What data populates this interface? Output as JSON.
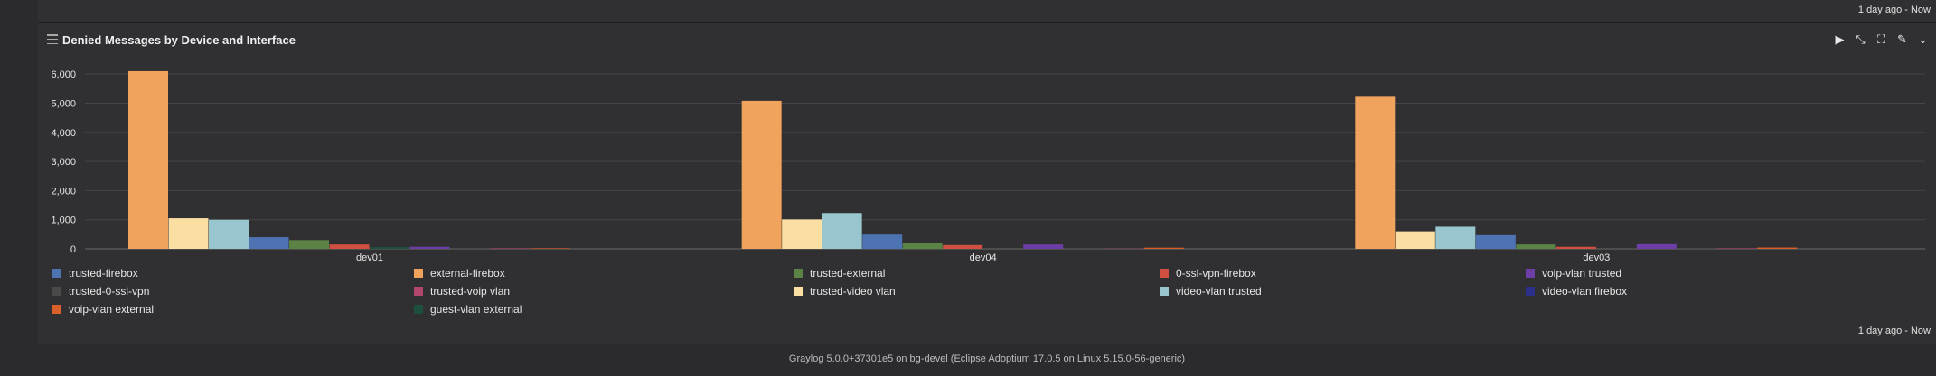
{
  "top_strip": {
    "time_range": "1 day ago - Now"
  },
  "widget": {
    "title": "Denied Messages by Device and Interface",
    "time_range": "1 day ago - Now",
    "tools": [
      {
        "name": "play-icon",
        "glyph": "▶"
      },
      {
        "name": "compress-icon",
        "glyph": "⤡"
      },
      {
        "name": "expand-icon",
        "glyph": "⛶"
      },
      {
        "name": "edit-icon",
        "glyph": "✎"
      },
      {
        "name": "chevron-down-icon",
        "glyph": "⌄"
      }
    ]
  },
  "footer": {
    "text": "Graylog 5.0.0+37301e5 on bg-devel (Eclipse Adoptium 17.0.5 on Linux 5.15.0-56-generic)"
  },
  "chart_data": {
    "type": "bar",
    "categories": [
      "dev01",
      "dev04",
      "dev03"
    ],
    "ylim": [
      0,
      6500
    ],
    "yticks": [
      0,
      1000,
      2000,
      3000,
      4000,
      5000,
      6000
    ],
    "ytick_labels": [
      "0",
      "1,000",
      "2,000",
      "3,000",
      "4,000",
      "5,000",
      "6,000"
    ],
    "grid": true,
    "legend_position": "bottom",
    "series": [
      {
        "name": "external-firebox",
        "color": "#f0a35c",
        "values": [
          6100,
          5080,
          5220
        ]
      },
      {
        "name": "trusted-video vlan",
        "color": "#fbdea2",
        "values": [
          1050,
          1010,
          600
        ]
      },
      {
        "name": "video-vlan trusted",
        "color": "#98c6cf",
        "values": [
          1000,
          1230,
          760
        ]
      },
      {
        "name": "trusted-firebox",
        "color": "#4e73b3",
        "values": [
          400,
          490,
          470
        ]
      },
      {
        "name": "trusted-external",
        "color": "#5b8345",
        "values": [
          300,
          190,
          150
        ]
      },
      {
        "name": "0-ssl-vpn-firebox",
        "color": "#d04f40",
        "values": [
          150,
          130,
          70
        ]
      },
      {
        "name": "guest-vlan external",
        "color": "#1d4f3c",
        "values": [
          60,
          0,
          0
        ]
      },
      {
        "name": "voip-vlan trusted",
        "color": "#6d3fa6",
        "values": [
          70,
          150,
          160
        ]
      },
      {
        "name": "trusted-0-ssl-vpn",
        "color": "#4a4a4a",
        "values": [
          30,
          30,
          30
        ]
      },
      {
        "name": "trusted-voip vlan",
        "color": "#b0456e",
        "values": [
          20,
          10,
          20
        ]
      },
      {
        "name": "voip-vlan external",
        "color": "#d9602a",
        "values": [
          20,
          40,
          45
        ]
      },
      {
        "name": "video-vlan firebox",
        "color": "#2a2f8a",
        "values": [
          0,
          0,
          0
        ]
      }
    ],
    "legend_entries": [
      {
        "name": "trusted-firebox",
        "color": "#4e73b3"
      },
      {
        "name": "external-firebox",
        "color": "#f0a35c"
      },
      {
        "name": "trusted-external",
        "color": "#5b8345"
      },
      {
        "name": "0-ssl-vpn-firebox",
        "color": "#d04f40"
      },
      {
        "name": "voip-vlan trusted",
        "color": "#6d3fa6"
      },
      {
        "name": "trusted-0-ssl-vpn",
        "color": "#4a4a4a"
      },
      {
        "name": "trusted-voip vlan",
        "color": "#b0456e"
      },
      {
        "name": "trusted-video vlan",
        "color": "#fbdea2"
      },
      {
        "name": "video-vlan trusted",
        "color": "#98c6cf"
      },
      {
        "name": "video-vlan firebox",
        "color": "#2a2f8a"
      },
      {
        "name": "voip-vlan external",
        "color": "#d9602a"
      },
      {
        "name": "guest-vlan external",
        "color": "#1d4f3c"
      }
    ]
  }
}
